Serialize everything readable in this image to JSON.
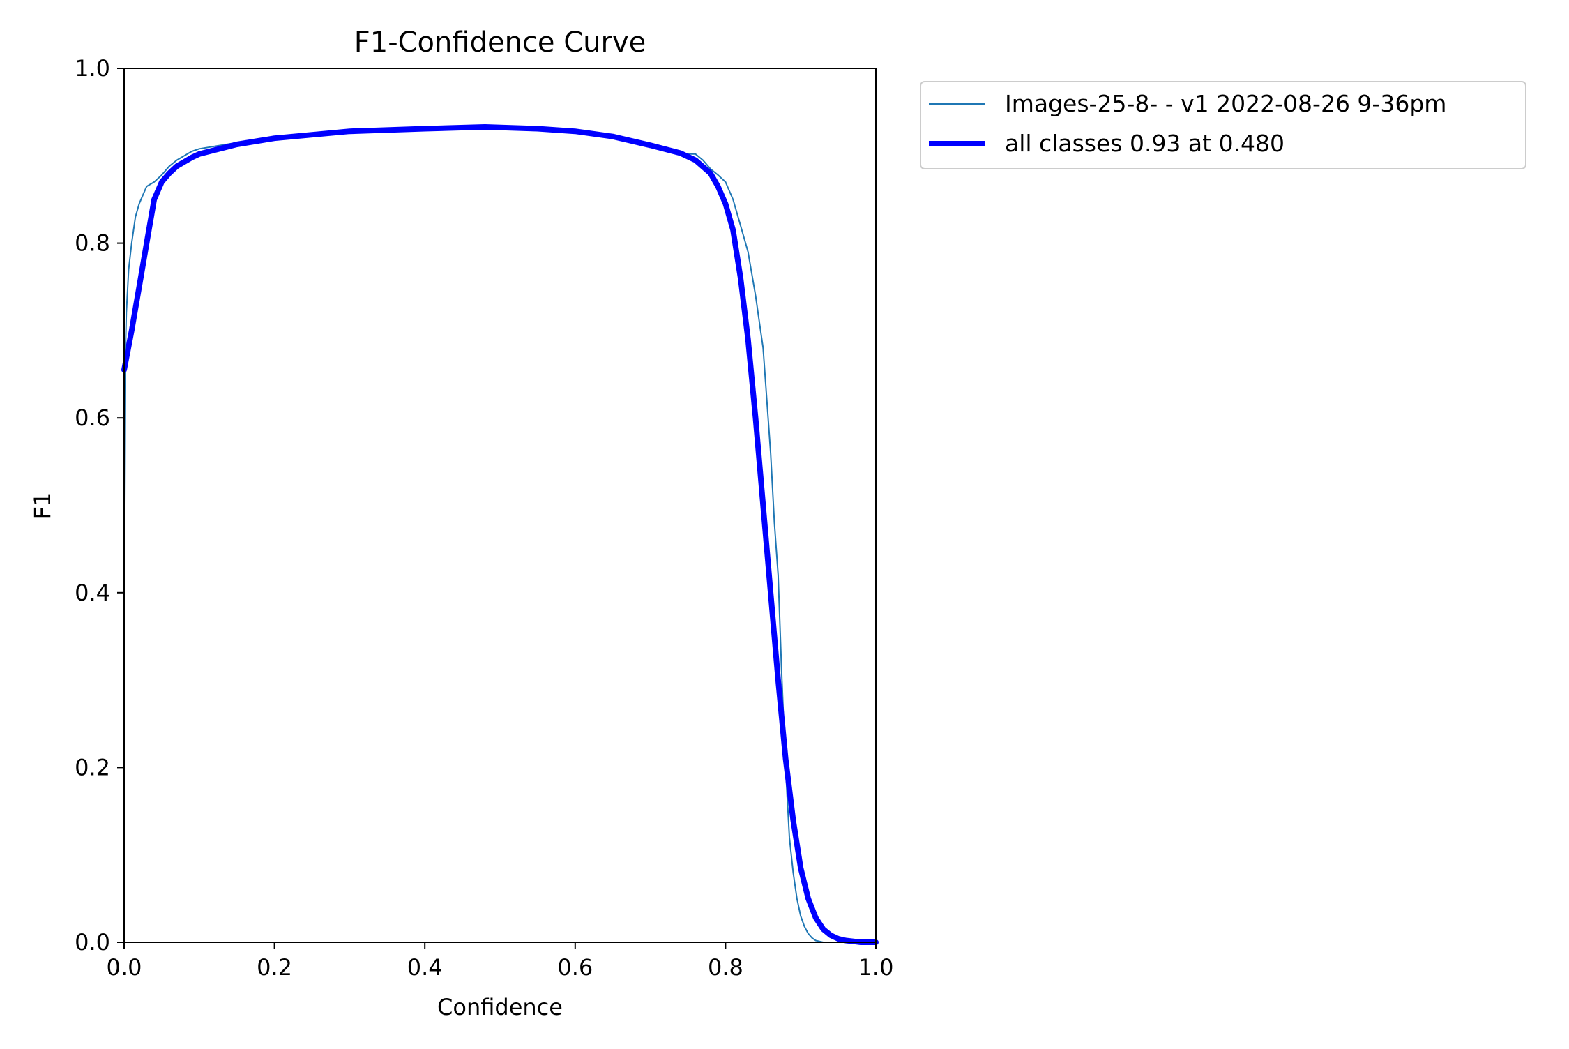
{
  "chart_data": {
    "type": "line",
    "title": "F1-Confidence Curve",
    "xlabel": "Confidence",
    "ylabel": "F1",
    "xlim": [
      0,
      1
    ],
    "ylim": [
      0,
      1
    ],
    "xticks": [
      "0.0",
      "0.2",
      "0.4",
      "0.6",
      "0.8",
      "1.0"
    ],
    "yticks": [
      "0.0",
      "0.2",
      "0.4",
      "0.6",
      "0.8",
      "1.0"
    ],
    "grid": false,
    "legend_position": "outside top-right",
    "series": [
      {
        "name": "Images-25-8- - v1 2022-08-26 9-36pm",
        "color": "#1f77b4",
        "style": "thin",
        "x": [
          0.0,
          0.001,
          0.003,
          0.006,
          0.01,
          0.015,
          0.02,
          0.025,
          0.03,
          0.04,
          0.05,
          0.06,
          0.07,
          0.08,
          0.09,
          0.1,
          0.15,
          0.2,
          0.3,
          0.4,
          0.48,
          0.55,
          0.6,
          0.65,
          0.7,
          0.74,
          0.76,
          0.77,
          0.78,
          0.79,
          0.8,
          0.81,
          0.82,
          0.83,
          0.84,
          0.85,
          0.855,
          0.86,
          0.865,
          0.87,
          0.875,
          0.88,
          0.885,
          0.89,
          0.895,
          0.9,
          0.905,
          0.91,
          0.915,
          0.92,
          0.925,
          0.93,
          0.935,
          0.94,
          1.0
        ],
        "values": [
          0.5,
          0.65,
          0.72,
          0.77,
          0.8,
          0.83,
          0.845,
          0.855,
          0.865,
          0.87,
          0.878,
          0.888,
          0.895,
          0.9,
          0.905,
          0.908,
          0.915,
          0.92,
          0.928,
          0.931,
          0.933,
          0.932,
          0.928,
          0.922,
          0.912,
          0.902,
          0.902,
          0.895,
          0.885,
          0.878,
          0.87,
          0.85,
          0.82,
          0.79,
          0.74,
          0.68,
          0.62,
          0.56,
          0.48,
          0.42,
          0.3,
          0.2,
          0.12,
          0.08,
          0.05,
          0.03,
          0.018,
          0.01,
          0.005,
          0.002,
          0.001,
          0.0,
          0.0,
          0.0,
          0.0
        ]
      },
      {
        "name": "all classes 0.93 at 0.480",
        "color": "#0000ff",
        "style": "thick",
        "x": [
          0.0,
          0.01,
          0.02,
          0.03,
          0.04,
          0.05,
          0.06,
          0.07,
          0.08,
          0.09,
          0.1,
          0.15,
          0.2,
          0.3,
          0.4,
          0.48,
          0.55,
          0.6,
          0.65,
          0.7,
          0.74,
          0.76,
          0.78,
          0.79,
          0.8,
          0.81,
          0.82,
          0.83,
          0.84,
          0.85,
          0.86,
          0.87,
          0.88,
          0.89,
          0.9,
          0.91,
          0.92,
          0.93,
          0.94,
          0.95,
          0.96,
          0.97,
          0.98,
          1.0
        ],
        "values": [
          0.655,
          0.7,
          0.75,
          0.8,
          0.85,
          0.87,
          0.88,
          0.888,
          0.893,
          0.898,
          0.902,
          0.913,
          0.92,
          0.928,
          0.931,
          0.933,
          0.931,
          0.928,
          0.922,
          0.912,
          0.903,
          0.895,
          0.88,
          0.865,
          0.845,
          0.815,
          0.76,
          0.69,
          0.6,
          0.5,
          0.4,
          0.3,
          0.21,
          0.14,
          0.085,
          0.05,
          0.028,
          0.015,
          0.008,
          0.004,
          0.002,
          0.001,
          0.0,
          0.0
        ]
      }
    ]
  }
}
